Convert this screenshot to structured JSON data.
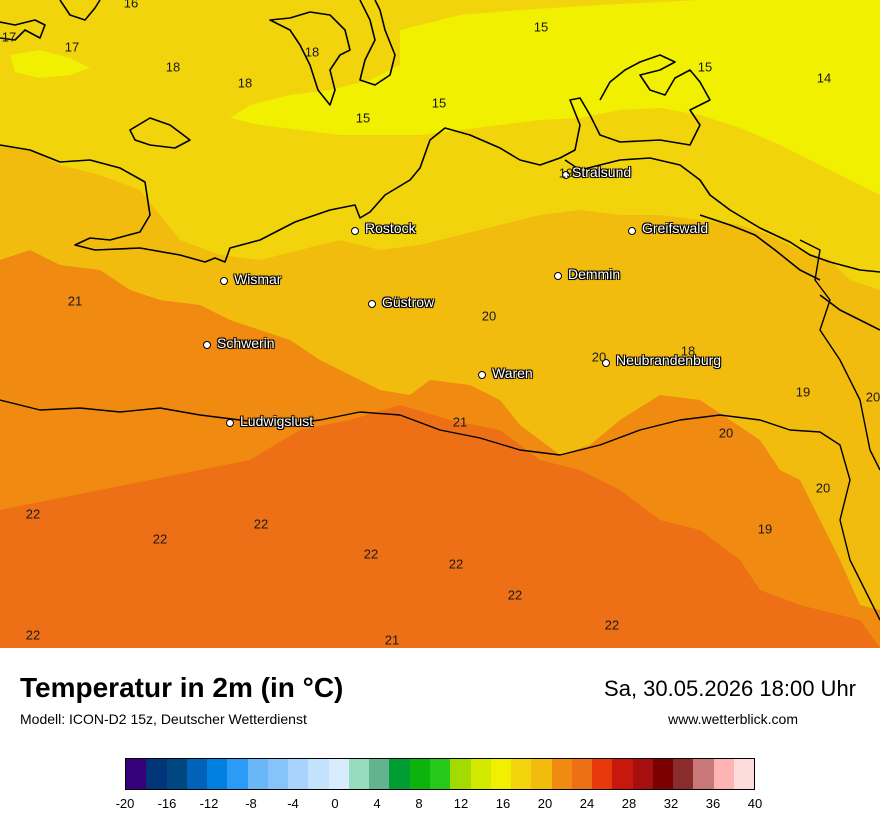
{
  "map": {
    "cities": [
      {
        "name": "Stralsund"
      },
      {
        "name": "Rostock"
      },
      {
        "name": "Greifswald"
      },
      {
        "name": "Wismar"
      },
      {
        "name": "Demmin"
      },
      {
        "name": "Güstrow"
      },
      {
        "name": "Schwerin"
      },
      {
        "name": "Neubrandenburg"
      },
      {
        "name": "Waren"
      },
      {
        "name": "Ludwigslust"
      }
    ],
    "temperature_labels": [
      "16",
      "17",
      "17",
      "18",
      "18",
      "18",
      "15",
      "15",
      "15",
      "15",
      "14",
      "19",
      "21",
      "20",
      "20",
      "18",
      "19",
      "20",
      "21",
      "20",
      "20",
      "22",
      "22",
      "22",
      "19",
      "22",
      "22",
      "22",
      "22",
      "22",
      "21"
    ],
    "colors": {
      "temp_14_16": "#f0f000",
      "temp_16_18": "#f2d40c",
      "temp_18_20": "#f2bc0e",
      "temp_20_22": "#f08a10",
      "temp_22_24": "#ee7016",
      "coastline": "#000000",
      "city_text": "#ffffff"
    }
  },
  "header": {
    "title": "Temperatur in 2m (in °C)",
    "model": "Modell: ICON-D2 15z, Deutscher Wetterdienst",
    "datetime": "Sa, 30.05.2026 18:00 Uhr",
    "website": "www.wetterblick.com"
  },
  "legend": {
    "colors": [
      "#35007a",
      "#00357a",
      "#004680",
      "#0062b8",
      "#0080e0",
      "#2b9bf5",
      "#6ab7f8",
      "#86c3fa",
      "#a8d3fc",
      "#c3e2fd",
      "#d7ecfe",
      "#97dcbe",
      "#63b48e",
      "#009d33",
      "#0db30d",
      "#26c91a",
      "#a3db00",
      "#d3e900",
      "#f0f000",
      "#f2d40c",
      "#f2bc0e",
      "#f08a10",
      "#ee7016",
      "#e8390c",
      "#c8180e",
      "#a50f0f",
      "#7d0000",
      "#8a2c2c",
      "#c87878",
      "#ffb4b4",
      "#ffdcdc"
    ],
    "tick_labels": [
      "-20",
      "-16",
      "-12",
      "-8",
      "-4",
      "0",
      "4",
      "8",
      "12",
      "16",
      "20",
      "24",
      "28",
      "32",
      "36",
      "40"
    ]
  }
}
